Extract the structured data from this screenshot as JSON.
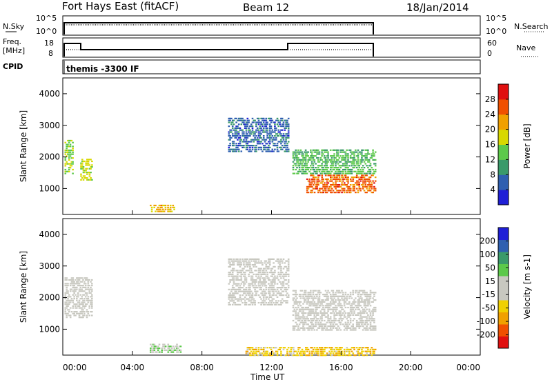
{
  "header": {
    "station": "Fort Hays East (fitACF)",
    "beam": "Beam 12",
    "date": "18/Jan/2014"
  },
  "panels": {
    "nsky_label": "N.Sky",
    "nsky_ticks": [
      "10^5",
      "10^0"
    ],
    "nsearch_label": "N.Search",
    "freq_label_1": "Freq.",
    "freq_label_2": "[MHz]",
    "freq_ticks": [
      "18",
      "8"
    ],
    "nave_label": "Nave",
    "nave_ticks": [
      "60",
      "0"
    ],
    "cpid_label": "CPID",
    "cpid_value": "themis -3300 IF"
  },
  "colors": {
    "power_scale": [
      "#1f1fd6",
      "#2f5fb0",
      "#3a9a6a",
      "#5cc94a",
      "#d8d800",
      "#f0a000",
      "#f05000",
      "#e01010"
    ],
    "velocity_scale": [
      "#e01010",
      "#f05000",
      "#f0a000",
      "#f0d000",
      "#c8c8c0",
      "#c8c8c0",
      "#5cc94a",
      "#3a9a6a",
      "#2f5fb0",
      "#1f1fd6"
    ]
  },
  "chart_data": [
    {
      "type": "heatmap",
      "title": "Power",
      "ylabel": "Slant Range [km]",
      "xlabel": "",
      "xlim": [
        "00:00",
        "24:00"
      ],
      "ylim": [
        180,
        4500
      ],
      "yticks": [
        "4000",
        "3000",
        "2000",
        "1000"
      ],
      "colorbar": {
        "label": "Power [dB]",
        "ticks": [
          "28",
          "24",
          "20",
          "16",
          "12",
          "8",
          "4"
        ],
        "range": [
          0,
          30
        ]
      },
      "regions": [
        {
          "t0": 0.1,
          "t1": 0.6,
          "r0": 1500,
          "r1": 2600,
          "value": 14
        },
        {
          "t0": 1.0,
          "t1": 1.7,
          "r0": 1300,
          "r1": 2000,
          "value": 16
        },
        {
          "t0": 5.0,
          "t1": 6.5,
          "r0": 300,
          "r1": 550,
          "value": 20
        },
        {
          "t0": 9.5,
          "t1": 13.0,
          "r0": 2200,
          "r1": 3300,
          "value": 6
        },
        {
          "t0": 13.2,
          "t1": 18.0,
          "r0": 1500,
          "r1": 2300,
          "value": 12
        },
        {
          "t0": 14.0,
          "t1": 18.0,
          "r0": 900,
          "r1": 1500,
          "value": 24
        }
      ]
    },
    {
      "type": "heatmap",
      "title": "Velocity",
      "ylabel": "Slant Range [km]",
      "xlabel": "Time UT",
      "xlim": [
        "00:00",
        "24:00"
      ],
      "ylim": [
        180,
        4500
      ],
      "xticks": [
        "00:00",
        "04:00",
        "08:00",
        "12:00",
        "16:00",
        "20:00",
        "00:00"
      ],
      "yticks": [
        "4000",
        "3000",
        "2000",
        "1000"
      ],
      "colorbar": {
        "label": "Velocity [m s-1]",
        "ticks": [
          "200",
          "100",
          "50",
          "15",
          "-15",
          "-50",
          "-100",
          "-200"
        ],
        "range": [
          -250,
          250
        ]
      },
      "regions": [
        {
          "t0": 0.1,
          "t1": 1.7,
          "r0": 1400,
          "r1": 2700,
          "value": 0
        },
        {
          "t0": 5.0,
          "t1": 6.8,
          "r0": 300,
          "r1": 600,
          "value": 40
        },
        {
          "t0": 9.5,
          "t1": 13.0,
          "r0": 1800,
          "r1": 3300,
          "value": 5
        },
        {
          "t0": 13.2,
          "t1": 18.0,
          "r0": 1000,
          "r1": 2300,
          "value": -5
        },
        {
          "t0": 10.5,
          "t1": 18.0,
          "r0": 200,
          "r1": 500,
          "value": -80
        }
      ]
    }
  ]
}
